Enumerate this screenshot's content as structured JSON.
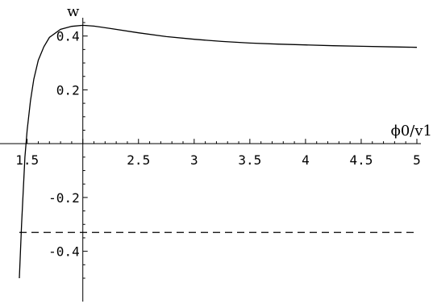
{
  "chart_data": {
    "type": "line",
    "xlabel": "ϕ0/v1",
    "ylabel": "w",
    "xlim": [
      1.43,
      5.0
    ],
    "ylim": [
      -0.5,
      0.48
    ],
    "axis_origin": [
      2.0,
      0.0
    ],
    "x_ticks": [
      {
        "value": 1.5,
        "label": "1.5"
      },
      {
        "value": 2.5,
        "label": "2.5"
      },
      {
        "value": 3.0,
        "label": "3"
      },
      {
        "value": 3.5,
        "label": "3.5"
      },
      {
        "value": 4.0,
        "label": "4"
      },
      {
        "value": 4.5,
        "label": "4.5"
      },
      {
        "value": 5.0,
        "label": "5"
      }
    ],
    "y_ticks": [
      {
        "value": 0.4,
        "label": "0.4"
      },
      {
        "value": 0.2,
        "label": "0.2"
      },
      {
        "value": -0.2,
        "label": "-0.2"
      },
      {
        "value": -0.4,
        "label": "-0.4"
      }
    ],
    "series": [
      {
        "style": "solid",
        "x": [
          1.43,
          1.45,
          1.48,
          1.5,
          1.53,
          1.56,
          1.6,
          1.65,
          1.7,
          1.8,
          1.9,
          2.0,
          2.1,
          2.25,
          2.5,
          2.75,
          3.0,
          3.25,
          3.5,
          3.75,
          4.0,
          4.25,
          4.5,
          4.75,
          5.0
        ],
        "y": [
          -0.5,
          -0.3,
          -0.05,
          0.05,
          0.16,
          0.24,
          0.31,
          0.36,
          0.395,
          0.425,
          0.436,
          0.44,
          0.437,
          0.428,
          0.412,
          0.398,
          0.388,
          0.38,
          0.374,
          0.37,
          0.367,
          0.364,
          0.362,
          0.36,
          0.358
        ]
      },
      {
        "style": "dashed",
        "x": [
          1.43,
          5.0
        ],
        "y": [
          -0.33,
          -0.33
        ]
      }
    ],
    "grid": false,
    "legend": "none"
  }
}
